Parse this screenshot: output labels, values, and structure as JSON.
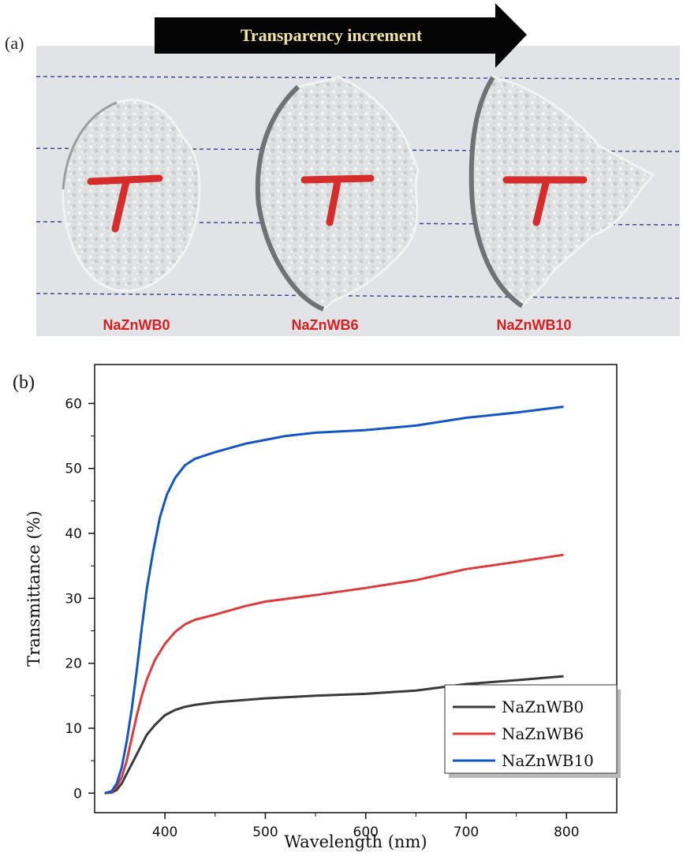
{
  "panel_a": {
    "label": "(a)",
    "banner": "Transparency increment",
    "samples": [
      {
        "name": "NaZnWB0"
      },
      {
        "name": "NaZnWB6"
      },
      {
        "name": "NaZnWB10"
      }
    ],
    "mark": "T",
    "colors": {
      "banner_bg": "#000000",
      "banner_text": "#f3e4a2",
      "label_red": "#d91e1e",
      "paper": "#e4e6ea",
      "grid_line": "#223a7a"
    }
  },
  "chart_data": {
    "type": "line",
    "panel_label": "(b)",
    "xlabel": "Wavelength (nm)",
    "ylabel": "Transmittance (%)",
    "xlim": [
      330,
      850
    ],
    "ylim": [
      -3,
      66
    ],
    "xticks": [
      400,
      500,
      600,
      700,
      800
    ],
    "yticks": [
      0,
      10,
      20,
      30,
      40,
      50,
      60
    ],
    "grid": false,
    "legend_position": "bottom-right",
    "series": [
      {
        "name": "NaZnWB0",
        "color": "#3a3a3a",
        "points": [
          [
            340,
            0
          ],
          [
            347,
            0.1
          ],
          [
            352,
            0.5
          ],
          [
            357,
            1.5
          ],
          [
            362,
            3
          ],
          [
            367,
            4.5
          ],
          [
            372,
            6
          ],
          [
            377,
            7.5
          ],
          [
            382,
            9
          ],
          [
            390,
            10.5
          ],
          [
            400,
            12
          ],
          [
            410,
            12.8
          ],
          [
            420,
            13.3
          ],
          [
            430,
            13.6
          ],
          [
            450,
            14
          ],
          [
            500,
            14.6
          ],
          [
            550,
            15
          ],
          [
            600,
            15.3
          ],
          [
            650,
            15.8
          ],
          [
            700,
            16.8
          ],
          [
            750,
            17.4
          ],
          [
            797,
            18
          ]
        ]
      },
      {
        "name": "NaZnWB6",
        "color": "#e03a3a",
        "points": [
          [
            340,
            0
          ],
          [
            347,
            0.2
          ],
          [
            352,
            1
          ],
          [
            357,
            2.5
          ],
          [
            362,
            5
          ],
          [
            367,
            8.5
          ],
          [
            372,
            12
          ],
          [
            377,
            15
          ],
          [
            382,
            17.5
          ],
          [
            390,
            20.5
          ],
          [
            400,
            23
          ],
          [
            410,
            24.8
          ],
          [
            420,
            26
          ],
          [
            430,
            26.7
          ],
          [
            450,
            27.5
          ],
          [
            480,
            28.8
          ],
          [
            500,
            29.5
          ],
          [
            550,
            30.5
          ],
          [
            600,
            31.6
          ],
          [
            650,
            32.8
          ],
          [
            700,
            34.5
          ],
          [
            750,
            35.6
          ],
          [
            797,
            36.7
          ]
        ]
      },
      {
        "name": "NaZnWB10",
        "color": "#1455c8",
        "points": [
          [
            340,
            0
          ],
          [
            347,
            0.3
          ],
          [
            352,
            1.5
          ],
          [
            357,
            4
          ],
          [
            362,
            8
          ],
          [
            367,
            13
          ],
          [
            372,
            19
          ],
          [
            377,
            25.5
          ],
          [
            382,
            31.5
          ],
          [
            388,
            37
          ],
          [
            395,
            42.5
          ],
          [
            402,
            46
          ],
          [
            410,
            48.5
          ],
          [
            420,
            50.5
          ],
          [
            430,
            51.5
          ],
          [
            450,
            52.5
          ],
          [
            480,
            53.8
          ],
          [
            500,
            54.4
          ],
          [
            520,
            55
          ],
          [
            550,
            55.5
          ],
          [
            600,
            55.9
          ],
          [
            650,
            56.6
          ],
          [
            700,
            57.8
          ],
          [
            750,
            58.6
          ],
          [
            797,
            59.5
          ]
        ]
      }
    ]
  }
}
